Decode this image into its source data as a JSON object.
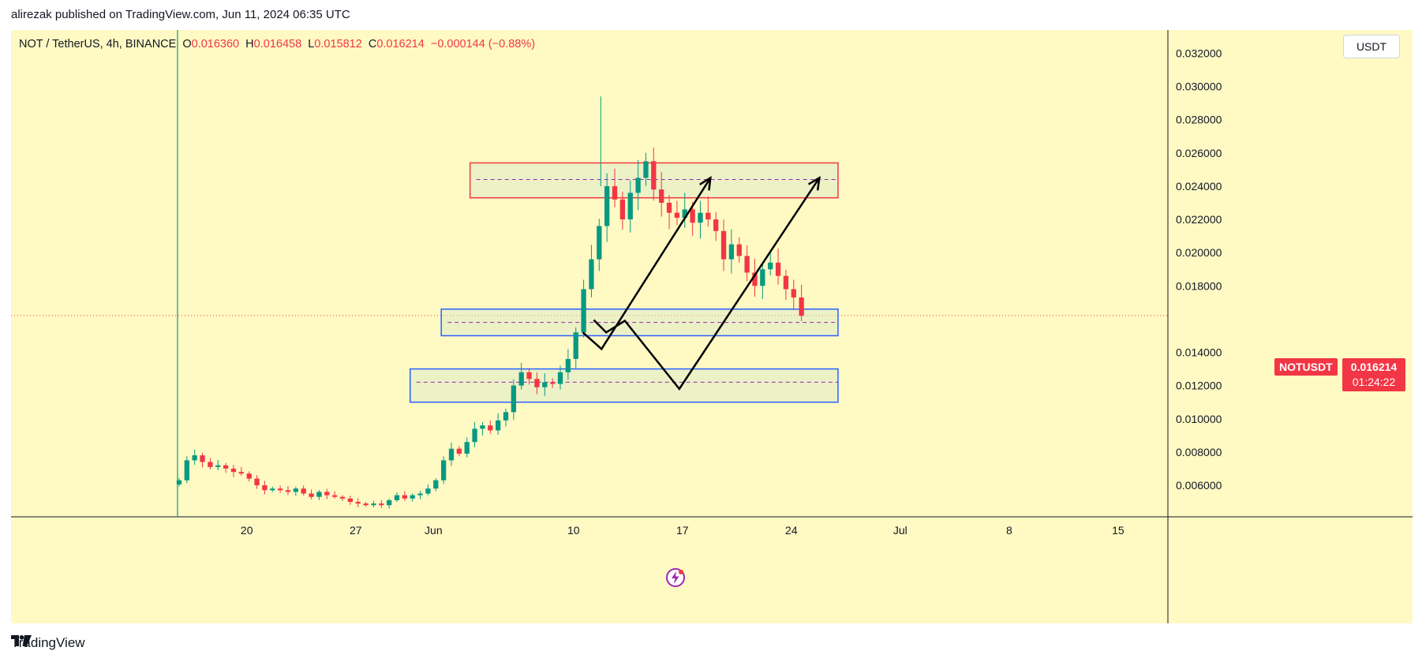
{
  "published": "alirezak published on TradingView.com, Jun 11, 2024 06:35 UTC",
  "footer": {
    "brand": "TradingView",
    "logo_icon": "tradingview-logo-icon"
  },
  "header": {
    "symbol": "NOT / TetherUS, 4h, BINANCE",
    "o_label": "O",
    "o_value": "0.016360",
    "h_label": "H",
    "h_value": "0.016458",
    "l_label": "L",
    "l_value": "0.015812",
    "c_label": "C",
    "c_value": "0.016214",
    "change": "−0.000144 (−0.88%)"
  },
  "currency_button": "USDT",
  "last_price": {
    "symbol": "NOTUSDT",
    "price": "0.016214",
    "countdown": "01:24:22"
  },
  "colors": {
    "background": "#fff9c4",
    "up": "#089981",
    "down": "#f23645",
    "resistance_box": "#f23645",
    "support_box": "#2962ff"
  },
  "chart_data": {
    "type": "candlestick",
    "y_axis": {
      "ticks": [
        0.032,
        0.03,
        0.028,
        0.026,
        0.024,
        0.022,
        0.02,
        0.018,
        0.014,
        0.012,
        0.01,
        0.008,
        0.006
      ],
      "tick_labels": [
        "0.032000",
        "0.030000",
        "0.028000",
        "0.026000",
        "0.024000",
        "0.022000",
        "0.020000",
        "0.018000",
        "0.014000",
        "0.012000",
        "0.010000",
        "0.008000",
        "0.006000"
      ],
      "range": [
        0.0041,
        0.0334
      ],
      "side": "right"
    },
    "x_axis": {
      "range": [
        0,
        49
      ],
      "ticks": [
        {
          "label": "20",
          "day": 4.5
        },
        {
          "label": "27",
          "day": 11.5
        },
        {
          "label": "Jun",
          "day": 16.5
        },
        {
          "label": "10",
          "day": 25.5
        },
        {
          "label": "17",
          "day": 32.5
        },
        {
          "label": "24",
          "day": 39.5
        },
        {
          "label": "Jul",
          "day": 46.5
        },
        {
          "label": "8",
          "day": 53.5
        },
        {
          "label": "15",
          "day": 60.5
        }
      ],
      "x_max_display": 63.6
    },
    "listing_day": 0.05,
    "closes": [
      0.0063,
      0.0075,
      0.0078,
      0.0074,
      0.0071,
      0.0072,
      0.007,
      0.0068,
      0.0067,
      0.0064,
      0.006,
      0.0057,
      0.0058,
      0.0057,
      0.0056,
      0.0058,
      0.0055,
      0.0053,
      0.0056,
      0.0054,
      0.0053,
      0.0052,
      0.005,
      0.0049,
      0.0048,
      0.0049,
      0.0048,
      0.0051,
      0.0054,
      0.0052,
      0.0054,
      0.0055,
      0.0058,
      0.0063,
      0.0075,
      0.0082,
      0.0079,
      0.0086,
      0.0094,
      0.0096,
      0.0093,
      0.0099,
      0.0104,
      0.012,
      0.0128,
      0.0124,
      0.0119,
      0.0122,
      0.0121,
      0.0128,
      0.0136,
      0.0152,
      0.0178,
      0.0196,
      0.0216,
      0.024,
      0.0232,
      0.022,
      0.0236,
      0.0245,
      0.0255,
      0.0238,
      0.023,
      0.0224,
      0.0221,
      0.0226,
      0.0218,
      0.0224,
      0.022,
      0.0213,
      0.0196,
      0.0205,
      0.0198,
      0.0188,
      0.018,
      0.019,
      0.0194,
      0.0186,
      0.0178,
      0.0173,
      0.0162
    ],
    "candle_start_day": 0.15,
    "candle_step_day": 0.5,
    "overlays": {
      "current_price": 0.016214,
      "resistance_box": {
        "day_start": 18.85,
        "day_end": 42.5,
        "top": 0.0254,
        "bottom": 0.0233,
        "mid": 0.0244
      },
      "support_box_1": {
        "day_start": 17.0,
        "day_end": 42.5,
        "top": 0.0166,
        "bottom": 0.015,
        "mid": 0.0158
      },
      "support_box_2": {
        "day_start": 15.0,
        "day_end": 42.5,
        "top": 0.013,
        "bottom": 0.011,
        "mid": 0.0122
      },
      "path_1": [
        {
          "day": 26.8,
          "price": 0.01595
        },
        {
          "day": 27.6,
          "price": 0.0152
        },
        {
          "day": 28.8,
          "price": 0.0159
        },
        {
          "day": 32.3,
          "price": 0.0118
        },
        {
          "day": 41.3,
          "price": 0.0245
        }
      ],
      "path_2": [
        {
          "day": 26.1,
          "price": 0.0152
        },
        {
          "day": 27.3,
          "price": 0.0142
        },
        {
          "day": 34.3,
          "price": 0.0245
        }
      ]
    }
  }
}
